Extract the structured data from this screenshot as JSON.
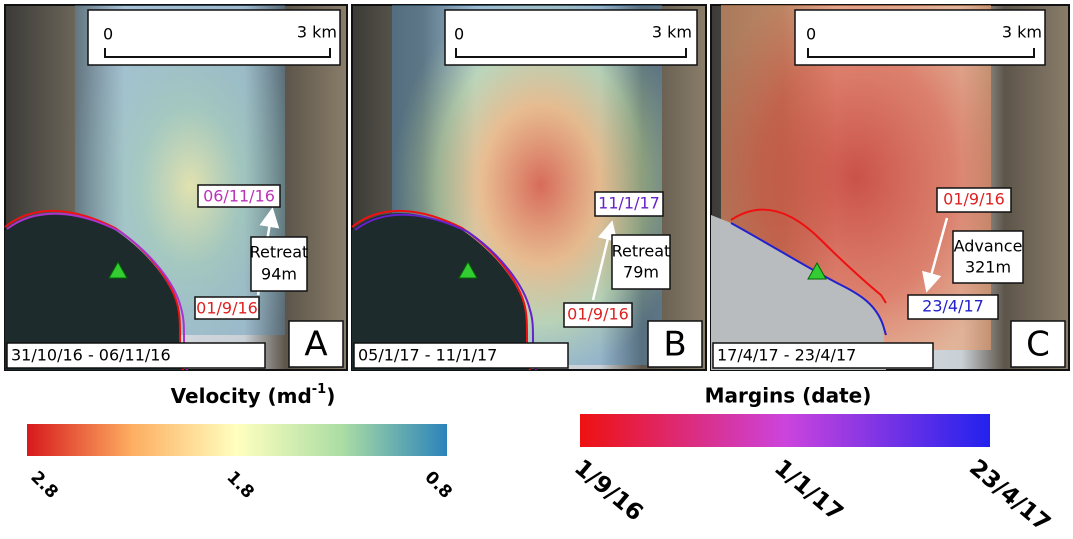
{
  "panels": [
    {
      "letter": "A",
      "date_range": "31/10/16 - 06/11/16",
      "scale_start": "0",
      "scale_end": "3 km",
      "label_upper": "06/11/16",
      "label_lower": "01/9/16",
      "change_type": "Retreat",
      "change_amount": "94m"
    },
    {
      "letter": "B",
      "date_range": "05/1/17 - 11/1/17",
      "scale_start": "0",
      "scale_end": "3 km",
      "label_upper": "11/1/17",
      "label_lower": "01/9/16",
      "change_type": "Retreat",
      "change_amount": "79m"
    },
    {
      "letter": "C",
      "date_range": "17/4/17 - 23/4/17",
      "scale_start": "0",
      "scale_end": "3 km",
      "label_upper": "01/9/16",
      "label_lower": "23/4/17",
      "change_type": "Advance",
      "change_amount": "321m"
    }
  ],
  "velocity_legend": {
    "title": "Velocity (md",
    "title_sup": "-1",
    "title_end": ")",
    "ticks": [
      "2.8",
      "1.8",
      "0.8"
    ]
  },
  "margins_legend": {
    "title": "Margins (date)",
    "ticks": [
      "1/9/16",
      "1/1/17",
      "23/4/17"
    ]
  }
}
